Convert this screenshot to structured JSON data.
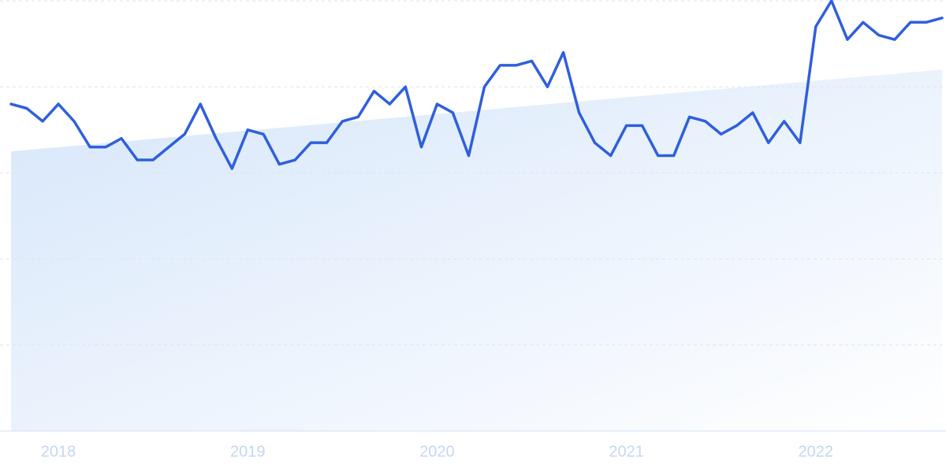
{
  "chart_data": {
    "type": "line",
    "x": [
      2017.75,
      2017.833,
      2017.917,
      2018,
      2018.083,
      2018.167,
      2018.25,
      2018.333,
      2018.417,
      2018.5,
      2018.583,
      2018.667,
      2018.75,
      2018.833,
      2018.917,
      2019,
      2019.083,
      2019.167,
      2019.25,
      2019.333,
      2019.417,
      2019.5,
      2019.583,
      2019.667,
      2019.75,
      2019.833,
      2019.917,
      2020,
      2020.083,
      2020.167,
      2020.25,
      2020.333,
      2020.417,
      2020.5,
      2020.583,
      2020.667,
      2020.75,
      2020.833,
      2020.917,
      2021,
      2021.083,
      2021.167,
      2021.25,
      2021.333,
      2021.417,
      2021.5,
      2021.583,
      2021.667,
      2021.75,
      2021.833,
      2021.917,
      2022,
      2022.083,
      2022.167,
      2022.25,
      2022.333,
      2022.417,
      2022.5,
      2022.583,
      2022.667
    ],
    "series": [
      {
        "color": "#2f5fdc",
        "values": [
          76,
          75,
          72,
          76,
          72,
          66,
          66,
          68,
          63,
          63,
          66,
          69,
          76,
          68,
          61,
          70,
          69,
          62,
          63,
          67,
          67,
          72,
          73,
          79,
          76,
          80,
          66,
          76,
          74,
          64,
          80,
          85,
          85,
          86,
          80,
          88,
          74,
          67,
          64,
          71,
          71,
          64,
          64,
          73,
          72,
          69,
          71,
          74,
          67,
          72,
          67,
          94,
          100,
          91,
          95,
          92,
          91,
          95,
          95,
          96
        ]
      }
    ],
    "trend": {
      "x": [
        2017.75,
        2022.667
      ],
      "values": [
        65,
        84
      ],
      "color": "#d6e6fa"
    },
    "xlim": [
      2017.75,
      2022.667
    ],
    "xticks": [
      2018,
      2019,
      2020,
      2021,
      2022
    ],
    "ylim": [
      0,
      100
    ],
    "yticks": [
      0,
      20,
      40,
      60,
      80,
      100
    ],
    "grid": true
  }
}
